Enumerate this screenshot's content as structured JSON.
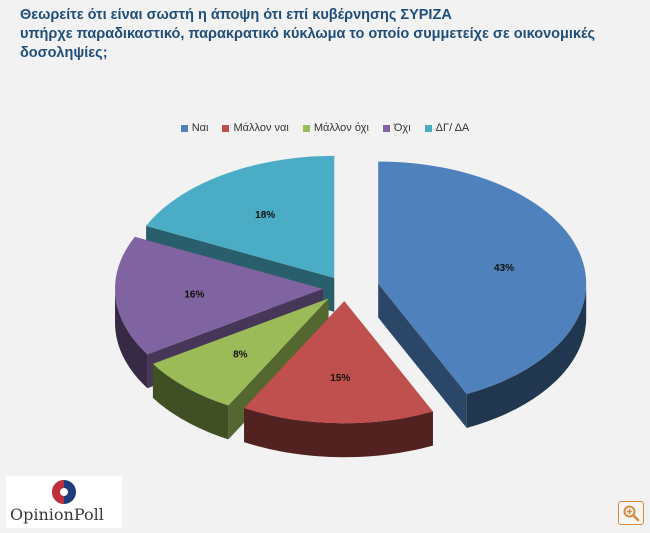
{
  "title_lines": [
    "Θεωρείτε ότι είναι σωστή η άποψη ότι επί κυβέρνησης ΣΥΡΙΖΑ",
    "υπήρχε  παραδικαστικό,  παρακρατικό  κύκλωμα  το οποίο συμμετείχε σε οικονομικές",
    "δοσοληψίες;"
  ],
  "chart_data": {
    "type": "pie",
    "title": "Θεωρείτε ότι είναι σωστή η άποψη ότι επί κυβέρνησης ΣΥΡΙΖΑ υπήρχε παραδικαστικό, παρακρατικό κύκλωμα το οποίο συμμετείχε σε οικονομικές δοσοληψίες;",
    "categories": [
      "Ναι",
      "Μάλλον ναι",
      "Μάλλον όχι",
      "Όχι",
      "ΔΓ/ ΔΑ"
    ],
    "values": [
      43,
      15,
      8,
      16,
      18
    ],
    "labels": [
      "43%",
      "15%",
      "8%",
      "16%",
      "18%"
    ],
    "colors": [
      "#4f81bd",
      "#c0504d",
      "#9bbb59",
      "#8064a2",
      "#4bacc6"
    ],
    "legend_position": "top",
    "style": "3d-exploded"
  },
  "logo": {
    "text": "OpinionPoll"
  },
  "zoom_icon": "zoom-in-icon"
}
